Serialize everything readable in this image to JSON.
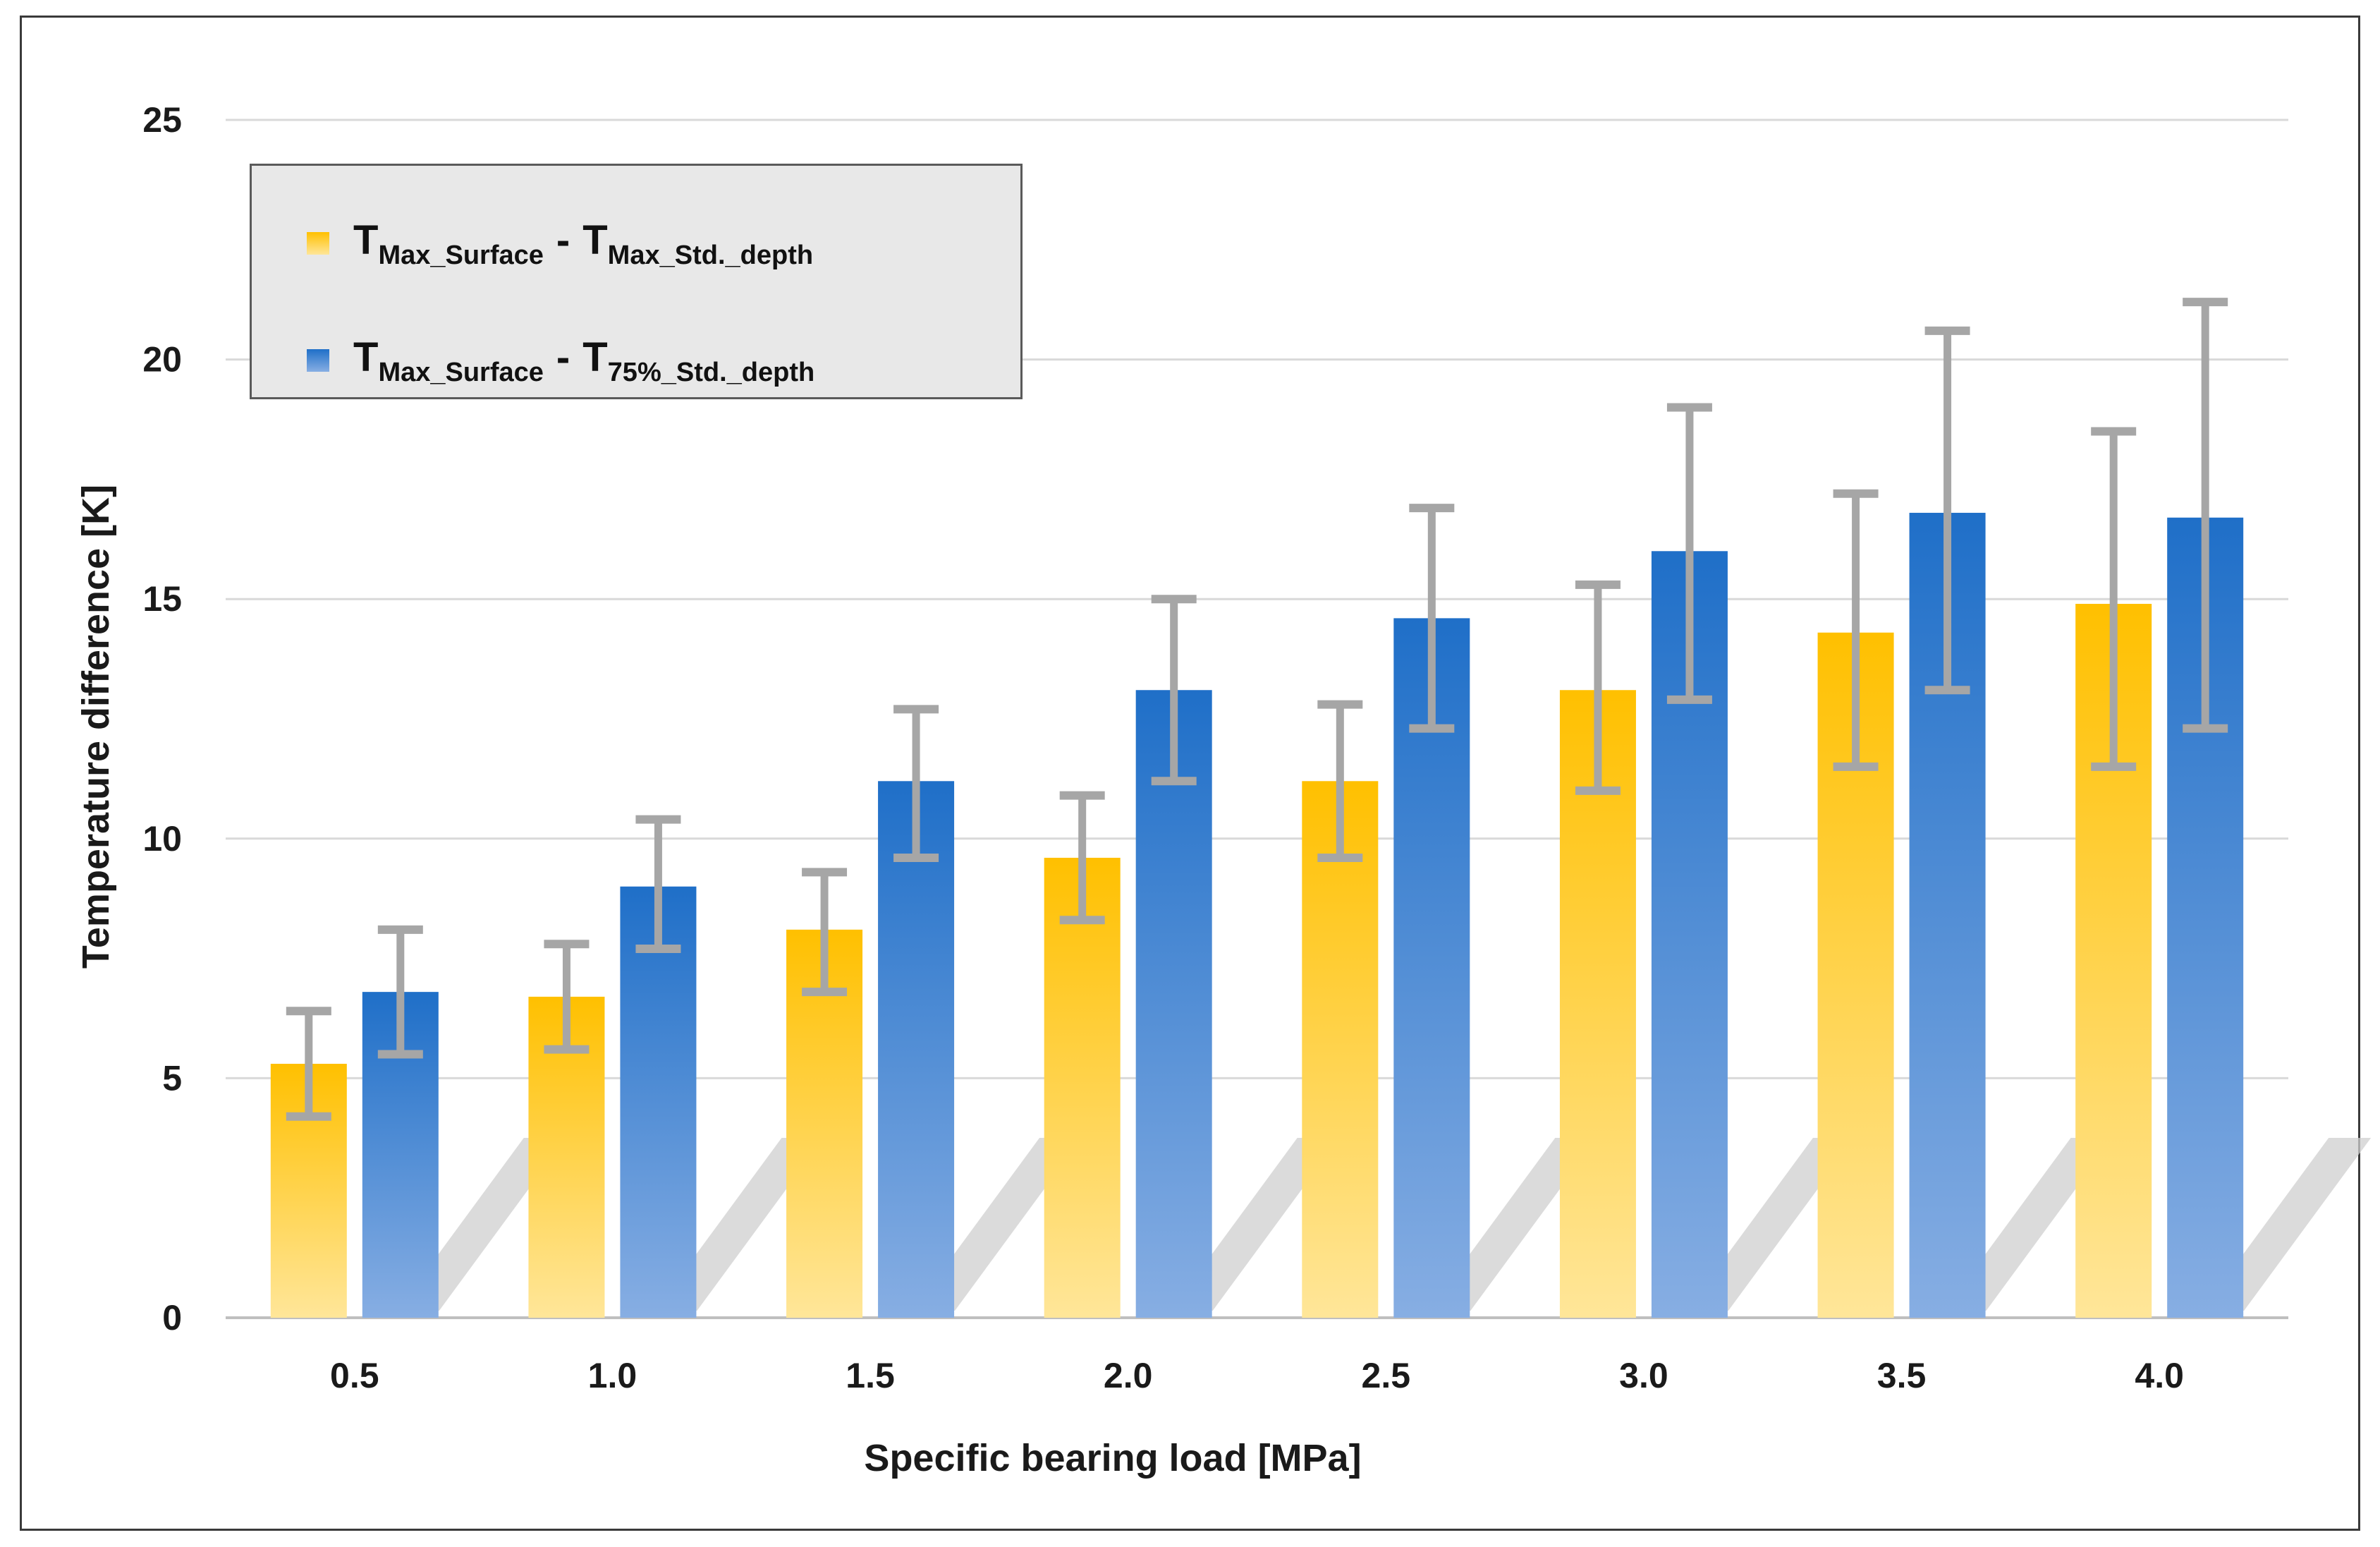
{
  "chart_data": {
    "type": "bar",
    "categories": [
      "0.5",
      "1.0",
      "1.5",
      "2.0",
      "2.5",
      "3.0",
      "3.5",
      "4.0"
    ],
    "xlabel": "Specific bearing load [MPa]",
    "ylabel": "Temperature difference [K]",
    "ylim": [
      0,
      25
    ],
    "yticks": [
      "0",
      "5",
      "10",
      "15",
      "20",
      "25"
    ],
    "grid": "horizontal",
    "legend_position": "top-left",
    "series": [
      {
        "legend": {
          "main": "T",
          "sub1": "Max_Surface",
          "dash": "-",
          "main2": "T",
          "sub2": "Max_Std._depth"
        },
        "color_top": "#ffc000",
        "color_bottom": "#ffe699",
        "values": [
          5.3,
          6.7,
          8.1,
          9.6,
          11.2,
          13.1,
          14.3,
          14.9
        ],
        "error_low": [
          4.2,
          5.6,
          6.8,
          8.3,
          9.6,
          11.0,
          11.5,
          11.5
        ],
        "error_high": [
          6.4,
          7.8,
          9.3,
          10.9,
          12.8,
          15.3,
          17.2,
          18.5
        ]
      },
      {
        "legend": {
          "main": "T",
          "sub1": "Max_Surface",
          "dash": "-",
          "main2": "T",
          "sub2": "75%_Std._depth"
        },
        "color_top": "#1f6fc8",
        "color_bottom": "#87aee3",
        "values": [
          6.8,
          9.0,
          11.2,
          13.1,
          14.6,
          16.0,
          16.8,
          16.7
        ],
        "error_low": [
          5.5,
          7.7,
          9.6,
          11.2,
          12.3,
          12.9,
          13.1,
          12.3
        ],
        "error_high": [
          8.1,
          10.4,
          12.7,
          15.0,
          16.9,
          19.0,
          20.6,
          21.2
        ]
      }
    ],
    "error_bar_color": "#a6a6a6"
  }
}
